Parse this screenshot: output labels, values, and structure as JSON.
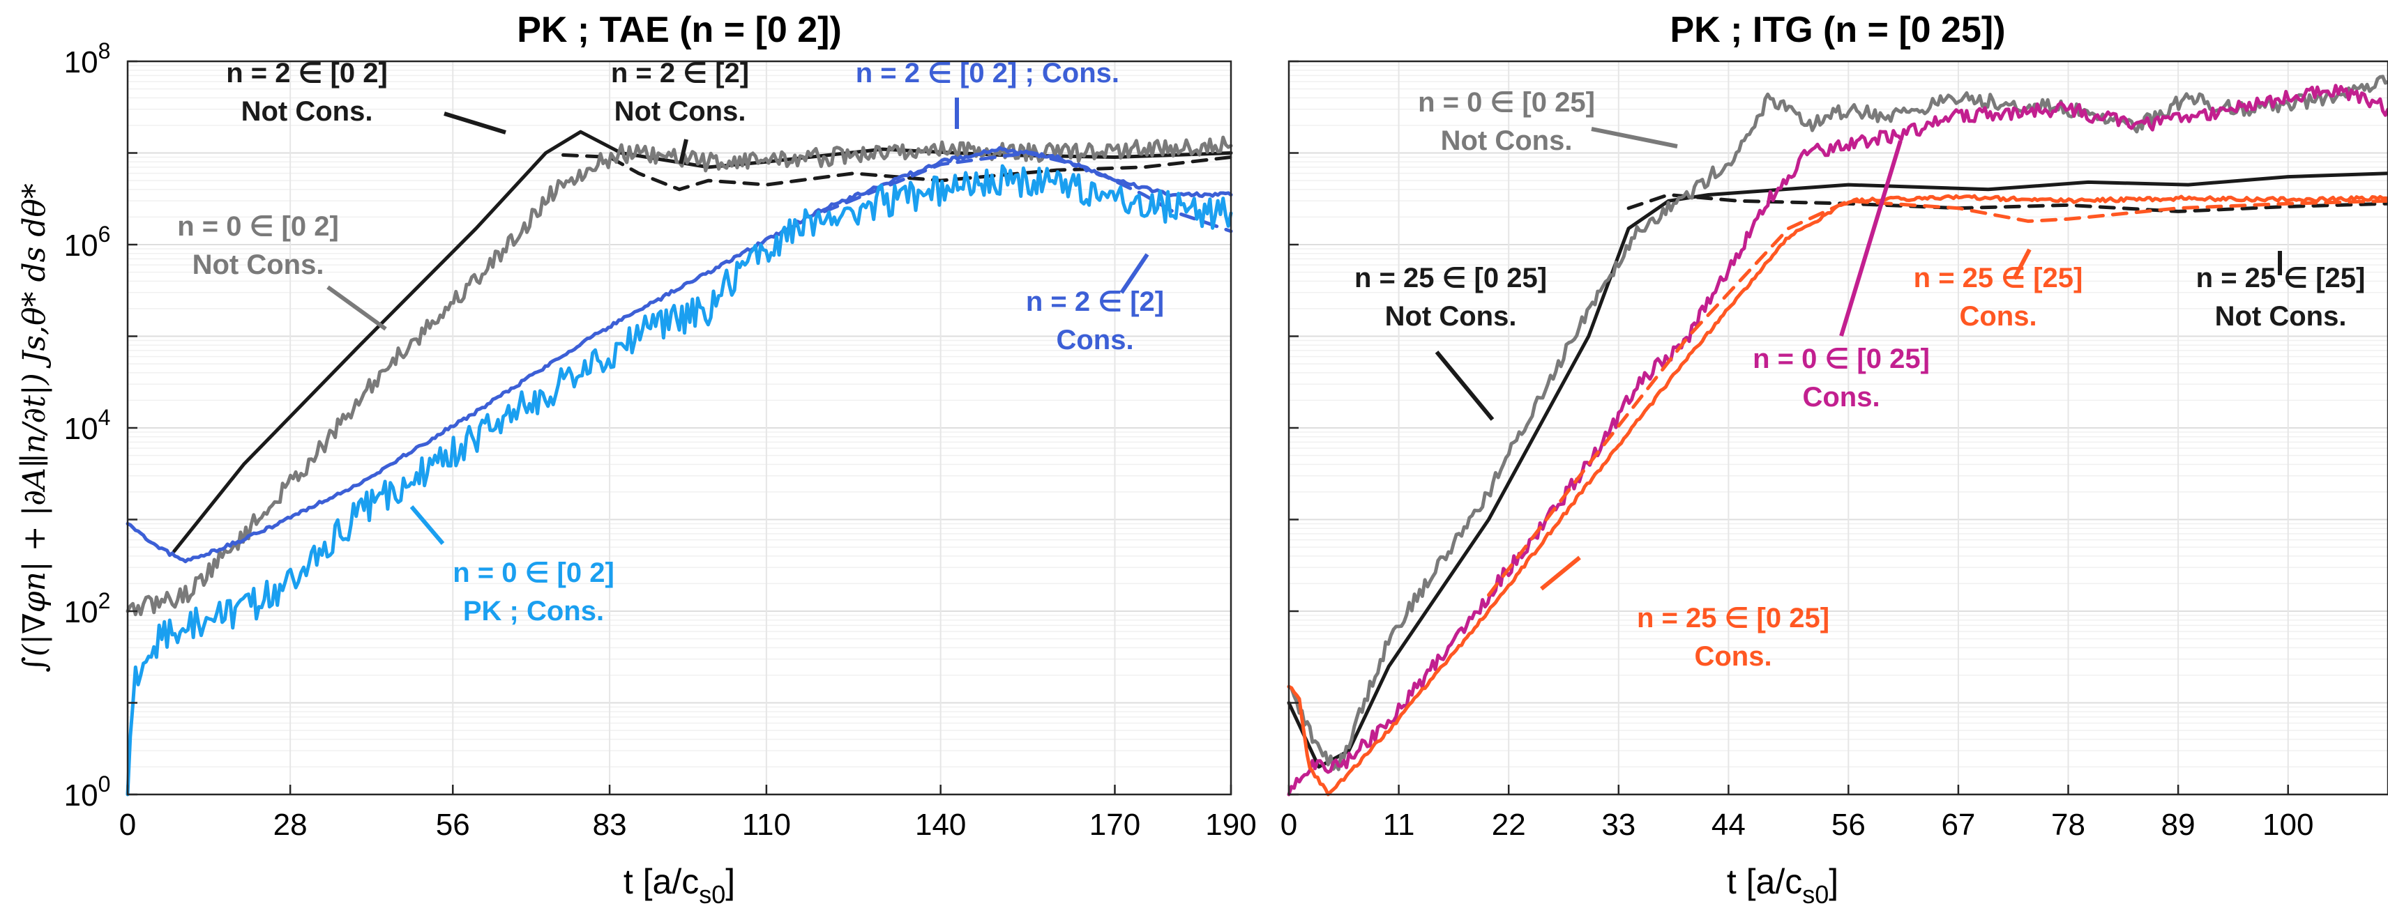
{
  "colors": {
    "black": "#1a1a1a",
    "gray": "#7a7a7a",
    "blue": "#3c5fd6",
    "lightblue": "#1a9ff0",
    "magenta": "#c21f8f",
    "orange": "#ff5722"
  },
  "ylabel": "∫(|∇φn| + |∂A∥n/∂t|) Js,θ* ds dθ*",
  "chart_data": [
    {
      "type": "line",
      "title": "PK ; TAE (n = [0 2])",
      "xlabel": "t [a/c",
      "xlabel_sub": "s0",
      "xlabel_tail": "]",
      "xlim": [
        0,
        190
      ],
      "xticks": [
        0,
        28,
        56,
        83,
        110,
        140,
        170,
        190
      ],
      "ylim": [
        1,
        100000000
      ],
      "yscale": "log",
      "yticks": [
        {
          "base": "10",
          "exp": "0"
        },
        {
          "base": "10",
          "exp": "2"
        },
        {
          "base": "10",
          "exp": "4"
        },
        {
          "base": "10",
          "exp": "6"
        },
        {
          "base": "10",
          "exp": "8"
        }
      ],
      "grid": true,
      "series": [
        {
          "color": "black",
          "dash": false,
          "noise": 0,
          "x": [
            8,
            20,
            40,
            60,
            72,
            78,
            85,
            100,
            110,
            130,
            150,
            170,
            190
          ],
          "y": [
            450,
            4000,
            80000,
            1500000,
            10000000,
            17000000,
            10000000,
            7000000,
            8000000,
            11000000,
            9500000,
            9000000,
            10000000
          ]
        },
        {
          "color": "black",
          "dash": true,
          "noise": 0,
          "x": [
            75,
            83,
            88,
            95,
            100,
            110,
            125,
            140,
            160,
            175,
            190
          ],
          "y": [
            9500000,
            9000000,
            6000000,
            4000000,
            5000000,
            4500000,
            6000000,
            5000000,
            6500000,
            7000000,
            9000000
          ]
        },
        {
          "color": "gray",
          "dash": false,
          "noise": 0.1,
          "x": [
            0,
            10,
            18,
            25,
            35,
            45,
            55,
            65,
            75,
            85,
            100,
            120,
            140,
            160,
            190
          ],
          "y": [
            100,
            150,
            500,
            1500,
            8000,
            50000,
            200000,
            900000,
            5000000,
            10000000,
            8000000,
            9000000,
            11000000,
            10000000,
            12000000
          ]
        },
        {
          "color": "blue",
          "dash": false,
          "noise": 0.02,
          "x": [
            0,
            5,
            10,
            20,
            40,
            60,
            80,
            100,
            120,
            140,
            150,
            160,
            170,
            180,
            190
          ],
          "y": [
            900,
            500,
            350,
            600,
            2500,
            15000,
            100000,
            500000,
            2500000,
            8000000,
            11000000,
            9000000,
            5000000,
            3500000,
            3500000
          ]
        },
        {
          "color": "blue",
          "dash": true,
          "noise": 0,
          "x": [
            120,
            140,
            155,
            165,
            175,
            180,
            185,
            190
          ],
          "y": [
            2300000,
            7500000,
            10000000,
            7000000,
            3500000,
            2300000,
            1800000,
            1400000
          ]
        },
        {
          "color": "lightblue",
          "dash": false,
          "noise": 0.18,
          "x": [
            0,
            1,
            3,
            10,
            20,
            30,
            40,
            50,
            60,
            70,
            80,
            90,
            100,
            105,
            110,
            115,
            130,
            150,
            160,
            170,
            180,
            190
          ],
          "y": [
            1,
            15,
            40,
            70,
            100,
            250,
            1200,
            3000,
            8000,
            20000,
            50000,
            120000,
            200000,
            500000,
            900000,
            1500000,
            3000000,
            5000000,
            4500000,
            3500000,
            2500000,
            2200000
          ]
        }
      ],
      "annotations": [
        {
          "lines": [
            "n = 2 ∈ [0 2]",
            "Not Cons."
          ],
          "color": "black"
        },
        {
          "lines": [
            "n = 2 ∈ [2]",
            "Not Cons."
          ],
          "color": "black"
        },
        {
          "lines": [
            "n = 2 ∈ [0 2] ; Cons."
          ],
          "color": "blue"
        },
        {
          "lines": [
            "n = 0 ∈ [0 2]",
            "Not Cons."
          ],
          "color": "gray"
        },
        {
          "lines": [
            "n = 2 ∈ [2]",
            "Cons."
          ],
          "color": "blue"
        },
        {
          "lines": [
            "n = 0 ∈ [0 2]",
            "PK ; Cons."
          ],
          "color": "lightblue"
        }
      ]
    },
    {
      "type": "line",
      "title": "PK ; ITG (n = [0 25])",
      "xlabel": "t [a/c",
      "xlabel_sub": "s0",
      "xlabel_tail": "]",
      "xlim": [
        0,
        110
      ],
      "xticks": [
        0,
        11,
        22,
        33,
        44,
        56,
        67,
        78,
        89,
        100
      ],
      "ylim": [
        1,
        100000000
      ],
      "yscale": "log",
      "yticks": [],
      "grid": true,
      "series": [
        {
          "color": "black",
          "dash": false,
          "noise": 0,
          "x": [
            0,
            3,
            6,
            10,
            20,
            30,
            34,
            38,
            42,
            56,
            70,
            80,
            90,
            100,
            110
          ],
          "y": [
            10,
            2,
            3,
            25,
            1000,
            100000,
            1500000,
            3000000,
            3500000,
            4500000,
            4000000,
            4800000,
            4500000,
            5500000,
            6000000
          ]
        },
        {
          "color": "black",
          "dash": true,
          "noise": 0,
          "x": [
            34,
            38,
            45,
            56,
            67,
            78,
            89,
            100,
            110
          ],
          "y": [
            2500000,
            3500000,
            3000000,
            2800000,
            2500000,
            2700000,
            2300000,
            2600000,
            2800000
          ]
        },
        {
          "color": "gray",
          "dash": false,
          "noise": 0.08,
          "x": [
            0,
            3,
            5,
            10,
            20,
            30,
            35,
            40,
            45,
            48,
            52,
            56,
            60,
            67,
            78,
            85,
            90,
            95,
            100,
            105,
            110
          ],
          "y": [
            15,
            3,
            2,
            50,
            2000,
            200000,
            1500000,
            3500000,
            10000000,
            40000000,
            20000000,
            30000000,
            25000000,
            40000000,
            30000000,
            20000000,
            40000000,
            30000000,
            35000000,
            40000000,
            60000000
          ]
        },
        {
          "color": "magenta",
          "dash": false,
          "noise": 0.08,
          "x": [
            0,
            2,
            5,
            10,
            20,
            30,
            35,
            40,
            45,
            48,
            52,
            56,
            60,
            67,
            78,
            85,
            90,
            100,
            105,
            110
          ],
          "y": [
            1,
            2,
            2,
            6,
            150,
            4000,
            30000,
            100000,
            800000,
            3000000,
            10000000,
            12000000,
            15000000,
            25000000,
            30000000,
            20000000,
            25000000,
            40000000,
            50000000,
            30000000
          ]
        },
        {
          "color": "orange",
          "dash": false,
          "noise": 0.02,
          "x": [
            0,
            1,
            2,
            4,
            10,
            20,
            30,
            40,
            50,
            56,
            67,
            78,
            89,
            100,
            110
          ],
          "y": [
            15,
            12,
            2,
            1,
            5,
            100,
            2500,
            60000,
            1200000,
            3000000,
            3300000,
            3000000,
            3200000,
            3100000,
            3200000
          ]
        },
        {
          "color": "orange",
          "dash": true,
          "noise": 0,
          "x": [
            20,
            30,
            40,
            50,
            56,
            67,
            74,
            78,
            89,
            100,
            110
          ],
          "y": [
            150,
            4000,
            100000,
            1500000,
            3000000,
            2500000,
            1800000,
            1900000,
            2500000,
            2800000,
            3000000
          ]
        }
      ],
      "annotations": [
        {
          "lines": [
            "n = 0 ∈ [0 25]",
            "Not Cons."
          ],
          "color": "gray"
        },
        {
          "lines": [
            "n = 25 ∈ [0 25]",
            "Not Cons."
          ],
          "color": "black"
        },
        {
          "lines": [
            "n = 25 ∈ [25]",
            "Cons."
          ],
          "color": "orange"
        },
        {
          "lines": [
            "n = 25 ∈ [25]",
            "Not Cons."
          ],
          "color": "black"
        },
        {
          "lines": [
            "n = 0 ∈ [0 25]",
            "Cons."
          ],
          "color": "magenta"
        },
        {
          "lines": [
            "n = 25 ∈ [0 25]",
            "Cons."
          ],
          "color": "orange"
        }
      ]
    }
  ]
}
